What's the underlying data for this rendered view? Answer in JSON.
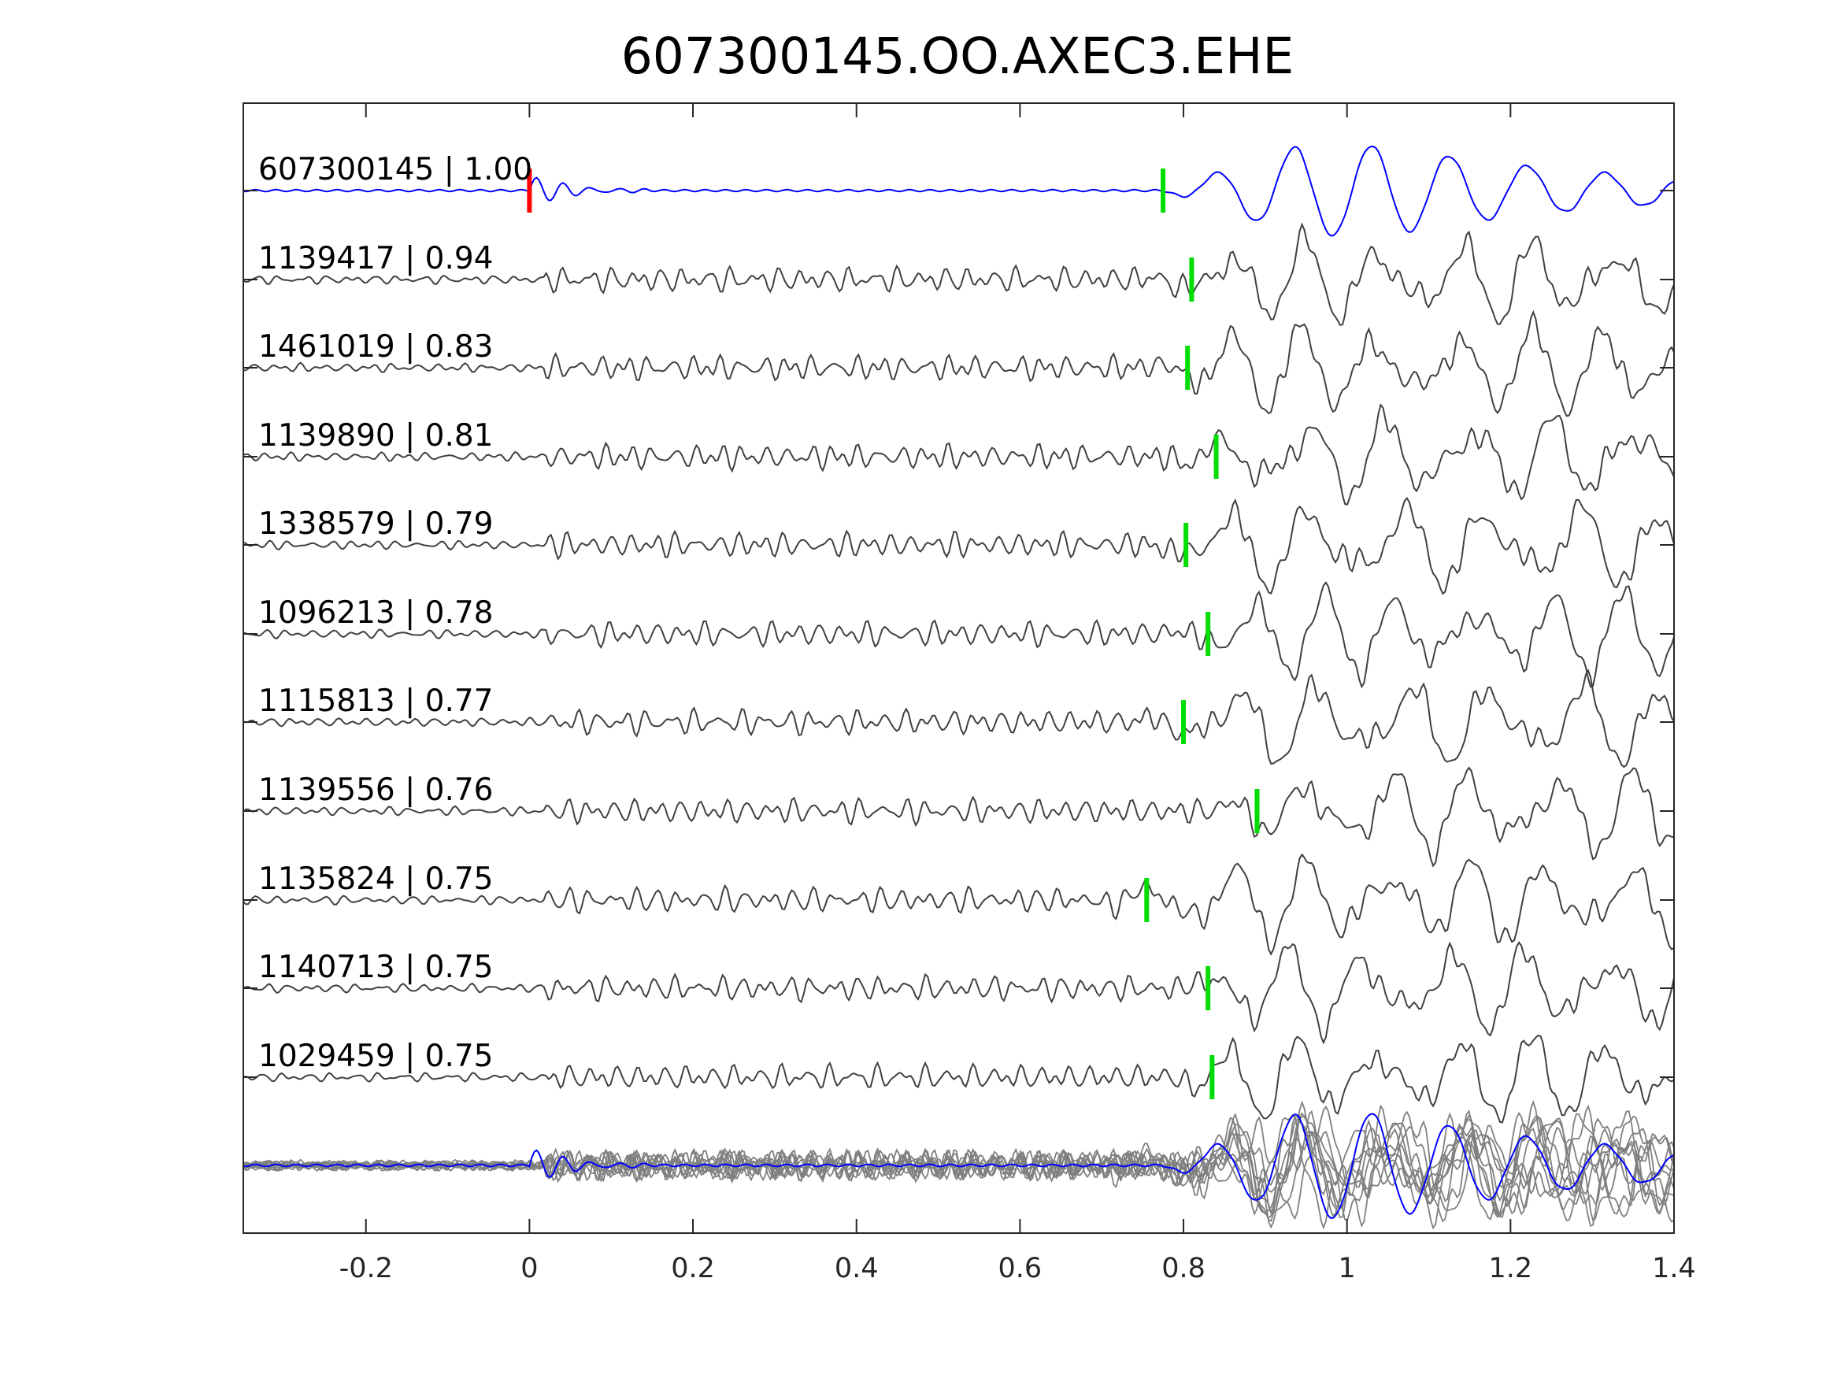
{
  "chart_data": {
    "type": "line",
    "title": "607300145.OO.AXEC3.EHE",
    "xlabel": "",
    "ylabel": "",
    "xlim": [
      -0.35,
      1.4
    ],
    "xticks": [
      -0.2,
      0,
      0.2,
      0.4,
      0.6,
      0.8,
      1,
      1.2,
      1.4
    ],
    "xtick_labels": [
      "-0.2",
      "0",
      "0.2",
      "0.4",
      "0.6",
      "0.8",
      "1",
      "1.2",
      "1.4"
    ],
    "grid": false,
    "colors": {
      "target": "#0000ff",
      "match": "#404040",
      "stack": "#808080",
      "origin_marker": "#ff0000",
      "pick_marker": "#00dd00",
      "axes": "#262626"
    },
    "series": [
      {
        "name": "607300145 | 1.00",
        "pick_time": 0.775,
        "origin_marker": 0
      },
      {
        "name": "1139417 | 0.94",
        "pick_time": 0.81
      },
      {
        "name": "1461019 | 0.83",
        "pick_time": 0.805
      },
      {
        "name": "1139890 | 0.81",
        "pick_time": 0.84
      },
      {
        "name": "1338579 | 0.79",
        "pick_time": 0.803
      },
      {
        "name": "1096213 | 0.78",
        "pick_time": 0.83
      },
      {
        "name": "1115813 | 0.77",
        "pick_time": 0.8
      },
      {
        "name": "1139556 | 0.76",
        "pick_time": 0.89
      },
      {
        "name": "1135824 | 0.75",
        "pick_time": 0.755
      },
      {
        "name": "1140713 | 0.75",
        "pick_time": 0.83
      },
      {
        "name": "1029459 | 0.75",
        "pick_time": 0.835
      }
    ]
  }
}
